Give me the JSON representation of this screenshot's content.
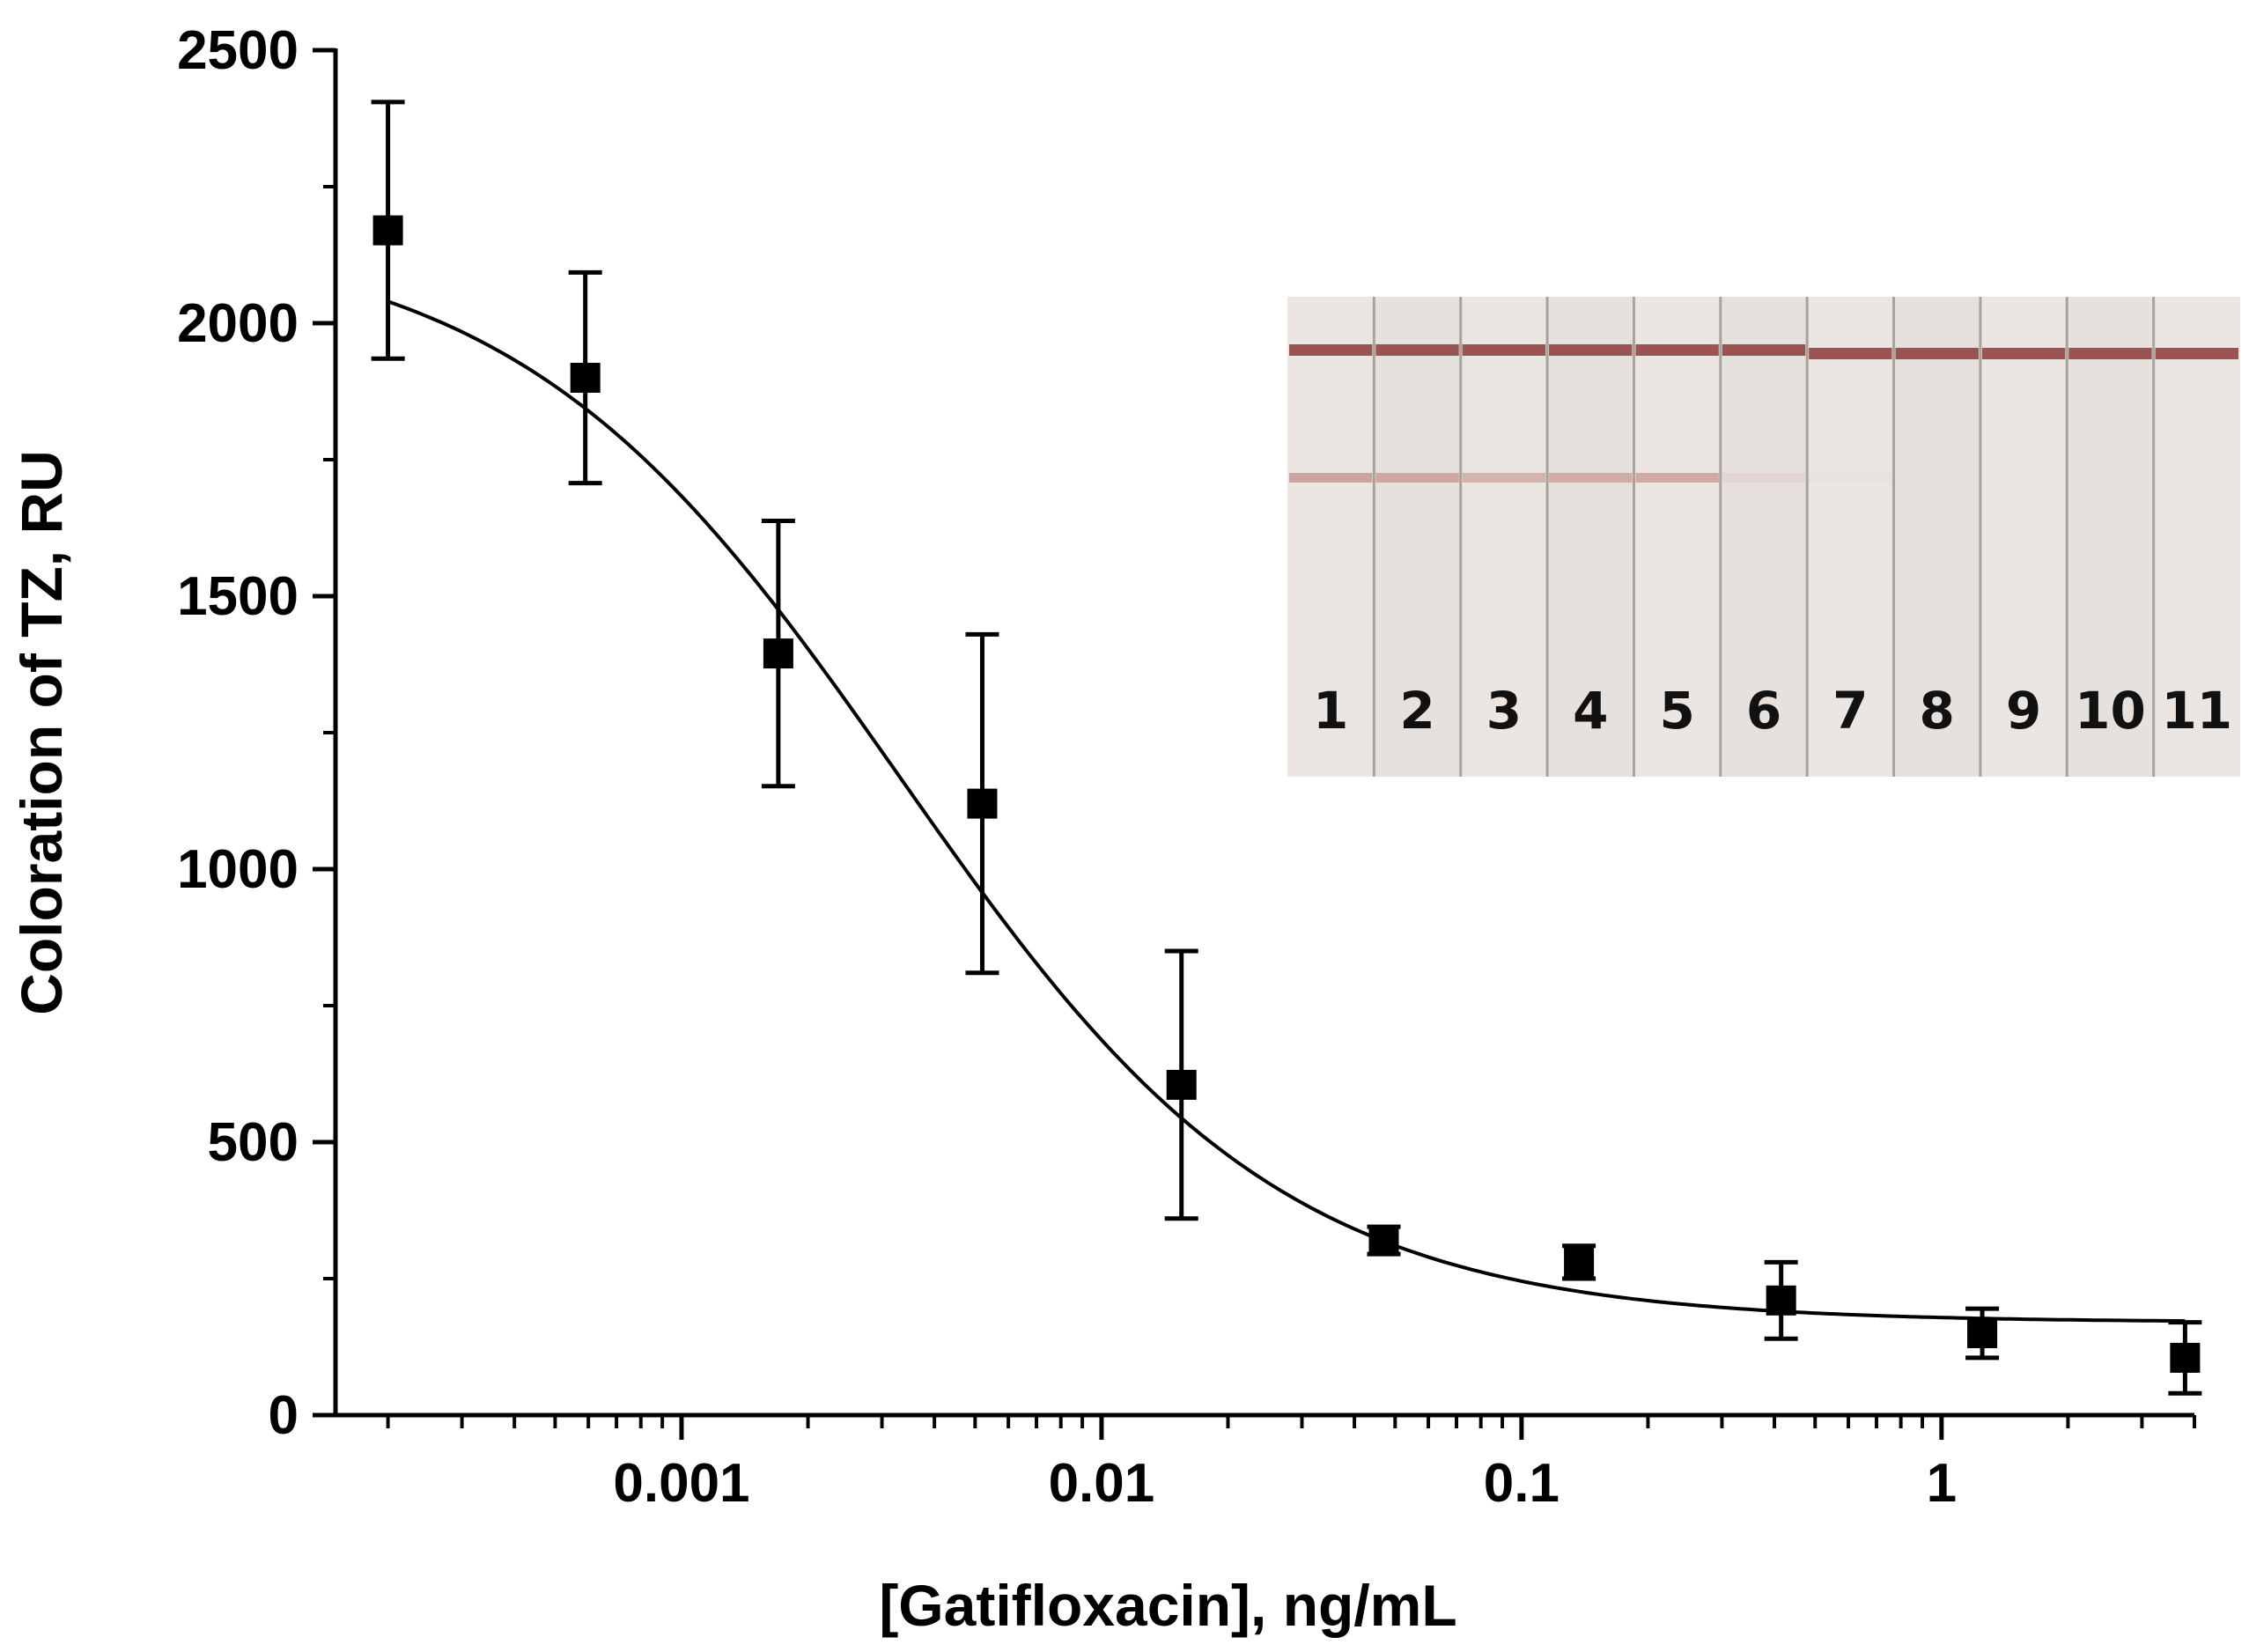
{
  "chart_data": {
    "type": "scatter",
    "xscale": "log",
    "xlabel": "[Gatifloxacin], ng/mL",
    "ylabel": "Coloration of TZ, RU",
    "xlim": [
      0.00015,
      4
    ],
    "ylim": [
      0,
      2500
    ],
    "xticks": [
      {
        "value": 0.001,
        "label": "0.001"
      },
      {
        "value": 0.01,
        "label": "0.01"
      },
      {
        "value": 0.1,
        "label": "0.1"
      },
      {
        "value": 1,
        "label": "1"
      }
    ],
    "yticks": [
      {
        "value": 0,
        "label": "0"
      },
      {
        "value": 500,
        "label": "500"
      },
      {
        "value": 1000,
        "label": "1000"
      },
      {
        "value": 1500,
        "label": "1500"
      },
      {
        "value": 2000,
        "label": "2000"
      },
      {
        "value": 2500,
        "label": "2500"
      }
    ],
    "points": [
      {
        "x": 0.0002,
        "y": 2170,
        "err": 235
      },
      {
        "x": 0.00059,
        "y": 1900,
        "err": 193
      },
      {
        "x": 0.0017,
        "y": 1395,
        "err": 243
      },
      {
        "x": 0.0052,
        "y": 1120,
        "err": 310
      },
      {
        "x": 0.0155,
        "y": 605,
        "err": 245
      },
      {
        "x": 0.047,
        "y": 320,
        "err": 25
      },
      {
        "x": 0.137,
        "y": 280,
        "err": 30
      },
      {
        "x": 0.415,
        "y": 210,
        "err": 70
      },
      {
        "x": 1.25,
        "y": 150,
        "err": 45
      },
      {
        "x": 3.8,
        "y": 105,
        "err": 65
      }
    ],
    "fit": {
      "model": "4PL",
      "top": 2170,
      "bottom": 170,
      "ic50": 0.0033,
      "hill": 0.95,
      "x_range": [
        0.0002,
        3.8
      ]
    },
    "inset": {
      "strip_labels": [
        "1",
        "2",
        "3",
        "4",
        "5",
        "6",
        "7",
        "8",
        "9",
        "10",
        "11"
      ],
      "test_line_intensity": [
        0.55,
        0.5,
        0.42,
        0.45,
        0.5,
        0.08,
        0.03,
        0,
        0,
        0,
        0
      ],
      "control_line_color": "#8b3a3a",
      "test_line_color": "#b56b6b",
      "background_color": "#e9e4e0"
    }
  }
}
